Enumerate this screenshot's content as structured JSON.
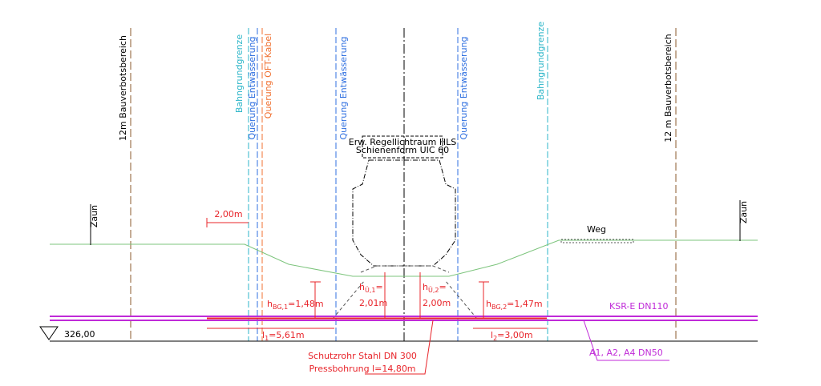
{
  "limits": {
    "left": "12m Bauverbotsbereich",
    "right": "12 m Bauverbotsbereich"
  },
  "boundaries": {
    "left": "Bahngrundgrenze",
    "right": "Bahngrundgrenze"
  },
  "crossings": {
    "drainage_1": "Querung Entwässerung",
    "drainage_2": "Querung Entwässerung",
    "drainage_3": "Querung Entwässerung",
    "cable": "Querung OFT-Kabel"
  },
  "profile": {
    "line1": "Erw. Regellichtraum HLS",
    "line2": "Schienenform UIC 60"
  },
  "fences": {
    "left": "Zaun",
    "right": "Zaun"
  },
  "path": "Weg",
  "dimensions": {
    "offset": "2,00m",
    "h_bg1": {
      "base": "h",
      "sub": "BG,1",
      "rest": "=1,48m"
    },
    "h_u1": {
      "base": "h",
      "sub": "Ü,1",
      "rest": "=",
      "value": "2,01m"
    },
    "h_u2": {
      "base": "h",
      "sub": "Ü,2",
      "rest": "=",
      "value": "2,00m"
    },
    "h_bg2": {
      "base": "h",
      "sub": "BG,2",
      "rest": "=1,47m"
    },
    "l1": {
      "base": "l",
      "sub": "1",
      "rest": "=5,61m"
    },
    "l2": {
      "base": "l",
      "sub": "2",
      "rest": "=3,00m"
    }
  },
  "pipes": {
    "ksr": "KSR-E DN110",
    "cables": "A1, A2, A4 DN50",
    "casing_1": "Schutzrohr Stahl DN 300",
    "casing_2": "Pressbohrung l=14,80m"
  },
  "elevation": "326,00"
}
